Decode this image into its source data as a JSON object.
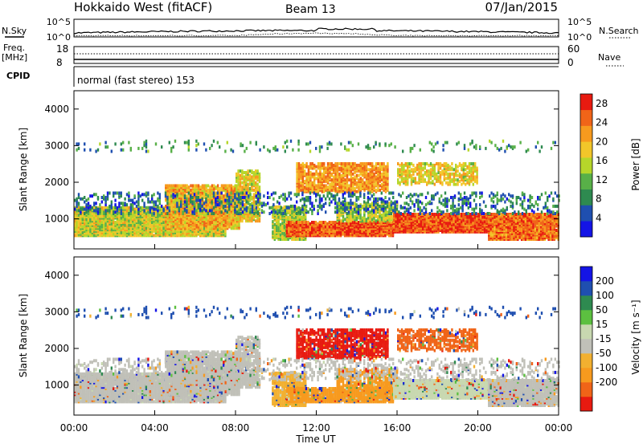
{
  "header": {
    "station": "Hokkaido West (fitACF)",
    "beam": "Beam 13",
    "date": "07/Jan/2015"
  },
  "top_panel": {
    "nsky_label": "N.Sky",
    "nsearch_label": "N.Search",
    "noise_ticks": [
      "10^5",
      "10^0"
    ],
    "freq_label": "Freq.",
    "freq_unit": "[MHz]",
    "freq_ticks": [
      "18",
      "8"
    ],
    "nave_label": "Nave",
    "nave_ticks": [
      "60",
      "0"
    ],
    "cpid_label": "CPID",
    "cpid_text": "normal (fast stereo) 153"
  },
  "colors": {
    "power": [
      "#1414e6",
      "#1f4fb0",
      "#2e8a50",
      "#58b048",
      "#b6d62a",
      "#f2c62a",
      "#f79a1e",
      "#f06418",
      "#e81a10"
    ],
    "velocity": [
      "#e81a10",
      "#f06418",
      "#f79a1e",
      "#f2b030",
      "#c0c0b8",
      "#c8d8b0",
      "#5cc040",
      "#2e8a50",
      "#1f4fb0",
      "#1414e6"
    ]
  },
  "chart_data": [
    {
      "type": "heatmap",
      "name": "power",
      "xlabel": "",
      "ylabel": "Slant Range [km]",
      "x_ticks": [
        "00:00",
        "04:00",
        "08:00",
        "12:00",
        "16:00",
        "20:00",
        "00:00"
      ],
      "y_ticks": [
        "1000",
        "2000",
        "3000",
        "4000"
      ],
      "ylim": [
        180,
        4500
      ],
      "colorbar_label": "Power [dB]",
      "colorbar_ticks": [
        "4",
        "8",
        "12",
        "16",
        "20",
        "24",
        "28"
      ],
      "colorbar_range": [
        0,
        30
      ]
    },
    {
      "type": "heatmap",
      "name": "velocity",
      "xlabel": "Time UT",
      "ylabel": "Slant Range [km]",
      "x_ticks": [
        "00:00",
        "04:00",
        "08:00",
        "12:00",
        "16:00",
        "20:00",
        "00:00"
      ],
      "y_ticks": [
        "1000",
        "2000",
        "3000",
        "4000"
      ],
      "ylim": [
        180,
        4500
      ],
      "colorbar_label": "Velocity [m s⁻¹]",
      "colorbar_ticks": [
        "200",
        "100",
        "50",
        "15",
        "-15",
        "-50",
        "-100",
        "-200"
      ],
      "colorbar_range": [
        -250,
        250
      ]
    }
  ]
}
